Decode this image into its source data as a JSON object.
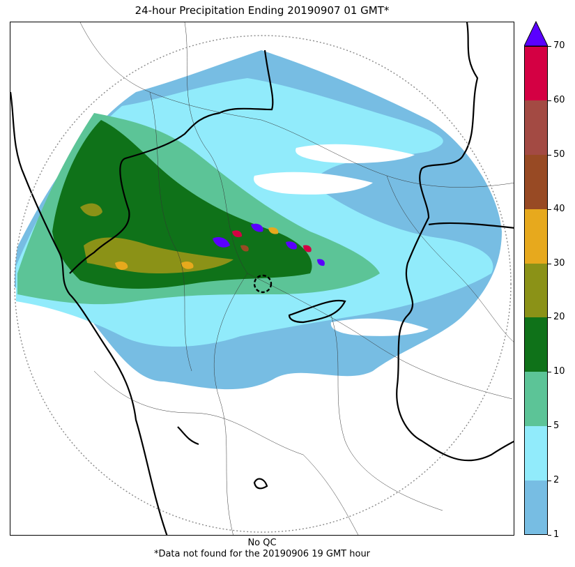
{
  "title": "24-hour Precipitation Ending 20190907 01 GMT*",
  "caption_line1": "No QC",
  "caption_line2": "*Data not found for the 20190906 19 GMT hour",
  "colorbar": {
    "ticks": [
      "1",
      "2",
      "5",
      "10",
      "20",
      "30",
      "40",
      "50",
      "60",
      "70"
    ],
    "bins": [
      {
        "from": "1",
        "to": "2",
        "color": "#77bde3"
      },
      {
        "from": "2",
        "to": "5",
        "color": "#91ebfb"
      },
      {
        "from": "5",
        "to": "10",
        "color": "#5cc497"
      },
      {
        "from": "10",
        "to": "20",
        "color": "#0f7219"
      },
      {
        "from": "20",
        "to": "30",
        "color": "#8b9217"
      },
      {
        "from": "30",
        "to": "40",
        "color": "#e7a91d"
      },
      {
        "from": "40",
        "to": "50",
        "color": "#984a24"
      },
      {
        "from": "50",
        "to": "60",
        "color": "#a34a43"
      },
      {
        "from": "60",
        "to": "70",
        "color": "#d40043"
      }
    ],
    "over_color": "#5a00ff"
  }
}
